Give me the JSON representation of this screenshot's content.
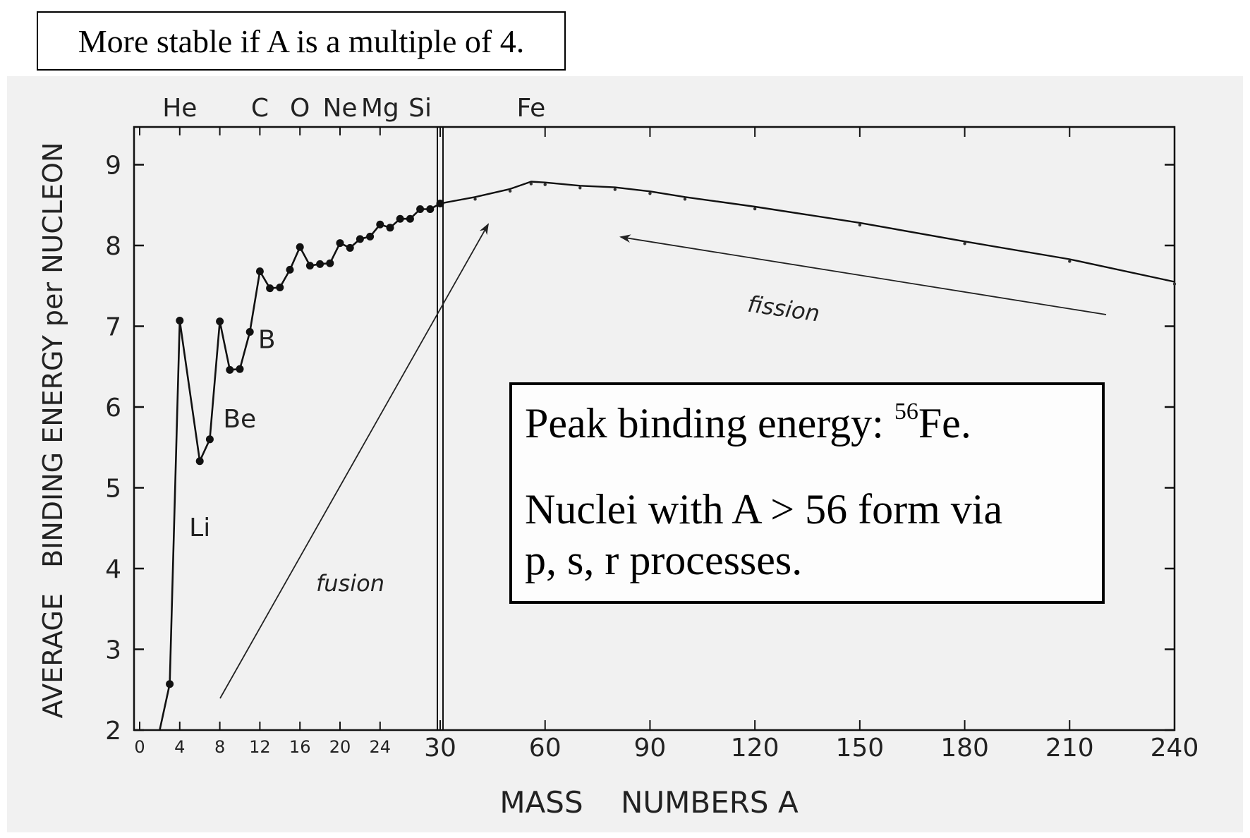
{
  "note": "More stable if A is a multiple of 4.",
  "peak_box": {
    "line1_prefix": "Peak binding energy: ",
    "line1_sup": "56",
    "line1_suffix": "Fe.",
    "line2": "Nuclei with A > 56 form via",
    "line3": "p, s, r processes."
  },
  "chart_data": {
    "type": "line",
    "xlabel": "MASS    NUMBERS A",
    "ylabel": "AVERAGE   BINDING ENERGY per NUCLEON",
    "ylim": [
      2,
      9.5
    ],
    "y_ticks": [
      "2",
      "3",
      "4",
      "5",
      "6",
      "7",
      "8",
      "9"
    ],
    "x_ticks_left": [
      "0",
      "4",
      "8",
      "12",
      "16",
      "20",
      "24"
    ],
    "x_ticks_right": [
      "30",
      "60",
      "90",
      "120",
      "150",
      "180",
      "210",
      "240"
    ],
    "x_left_range": [
      0,
      30
    ],
    "x_right_range": [
      30,
      240
    ],
    "element_labels_top": [
      {
        "label": "He",
        "A": 4
      },
      {
        "label": "C",
        "A": 12
      },
      {
        "label": "O",
        "A": 16
      },
      {
        "label": "Ne",
        "A": 20
      },
      {
        "label": "Mg",
        "A": 24
      },
      {
        "label": "Si",
        "A": 28
      },
      {
        "label": "Fe",
        "A": 56
      }
    ],
    "element_labels_inline": [
      {
        "label": "Li",
        "A": 6,
        "y": 5.1
      },
      {
        "label": "Be",
        "A": 9,
        "y": 6.2
      },
      {
        "label": "B",
        "A": 11,
        "y": 6.8
      }
    ],
    "light_nuclei": {
      "x": [
        2,
        3,
        4,
        6,
        7,
        8,
        9,
        10,
        11,
        12,
        13,
        14,
        15,
        16,
        17,
        18,
        19,
        20,
        21,
        22,
        23,
        24,
        25,
        26,
        27,
        28,
        29,
        30
      ],
      "y": [
        1.1,
        2.57,
        7.07,
        5.33,
        5.6,
        7.06,
        6.46,
        6.47,
        6.93,
        7.68,
        7.47,
        7.48,
        7.7,
        7.98,
        7.75,
        7.77,
        7.78,
        8.03,
        7.97,
        8.08,
        8.11,
        8.26,
        8.22,
        8.33,
        8.33,
        8.45,
        8.45,
        8.52
      ]
    },
    "heavy_nuclei": {
      "x": [
        30,
        40,
        50,
        56,
        60,
        70,
        80,
        90,
        100,
        120,
        150,
        180,
        210,
        240
      ],
      "y": [
        8.52,
        8.6,
        8.7,
        8.79,
        8.78,
        8.74,
        8.72,
        8.67,
        8.6,
        8.48,
        8.28,
        8.05,
        7.83,
        7.55
      ]
    },
    "annotations": [
      {
        "text": "fusion",
        "A_label": 18
      },
      {
        "text": "fission",
        "A_label": 175
      }
    ]
  }
}
